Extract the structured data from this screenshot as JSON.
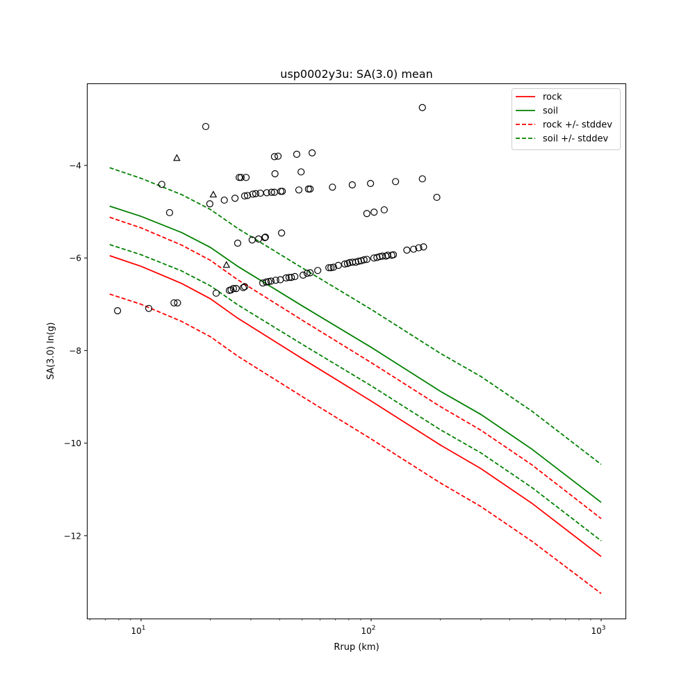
{
  "chart_data": {
    "type": "scatter",
    "title": "usp0002y3u: SA(3.0) mean",
    "xlabel": "Rrup (km)",
    "ylabel": "SA(3.0) ln(g)",
    "xscale": "log",
    "xlim": [
      5.8,
      1276
    ],
    "ylim": [
      -13.79,
      -2.23
    ],
    "grid": false,
    "legend_position": "top-right",
    "x_ticks": [
      {
        "value": 10,
        "base": "10",
        "exp": "1"
      },
      {
        "value": 100,
        "base": "10",
        "exp": "2"
      },
      {
        "value": 1000,
        "base": "10",
        "exp": "3"
      }
    ],
    "y_ticks": [
      {
        "value": -4,
        "label": "−4"
      },
      {
        "value": -6,
        "label": "−6"
      },
      {
        "value": -8,
        "label": "−8"
      },
      {
        "value": -10,
        "label": "−10"
      },
      {
        "value": -12,
        "label": "−12"
      }
    ],
    "curve_x": [
      7.3,
      10,
      15,
      20,
      26.3,
      50,
      100,
      200,
      300,
      500,
      1000
    ],
    "series": [
      {
        "name": "rock",
        "color": "#ff0000",
        "dash": false,
        "values": [
          -5.95,
          -6.18,
          -6.55,
          -6.88,
          -7.3,
          -8.17,
          -9.09,
          -10.04,
          -10.55,
          -11.3,
          -12.45
        ]
      },
      {
        "name": "soil",
        "color": "#008000",
        "dash": false,
        "values": [
          -4.88,
          -5.1,
          -5.45,
          -5.77,
          -6.18,
          -7.03,
          -7.93,
          -8.88,
          -9.38,
          -10.13,
          -11.28
        ]
      },
      {
        "name": "rock +/- stddev",
        "color": "#ff0000",
        "dash": true,
        "values": [
          -5.12,
          -5.35,
          -5.72,
          -6.05,
          -6.47,
          -7.34,
          -8.26,
          -9.21,
          -9.72,
          -10.47,
          -11.63
        ]
      },
      {
        "name": "rock lower",
        "legend": false,
        "color": "#ff0000",
        "dash": true,
        "values": [
          -6.78,
          -7.0,
          -7.37,
          -7.7,
          -8.12,
          -8.99,
          -9.91,
          -10.86,
          -11.37,
          -12.12,
          -13.25
        ]
      },
      {
        "name": "soil +/- stddev",
        "color": "#008000",
        "dash": true,
        "values": [
          -4.05,
          -4.28,
          -4.63,
          -4.95,
          -5.36,
          -6.21,
          -7.11,
          -8.06,
          -8.56,
          -9.31,
          -10.46
        ]
      },
      {
        "name": "soil lower",
        "legend": false,
        "color": "#008000",
        "dash": true,
        "values": [
          -5.71,
          -5.93,
          -6.28,
          -6.6,
          -7.01,
          -7.86,
          -8.76,
          -9.71,
          -10.21,
          -10.96,
          -12.11
        ]
      }
    ],
    "circles": [
      [
        7.9,
        -7.14
      ],
      [
        10.8,
        -7.09
      ],
      [
        12.3,
        -4.41
      ],
      [
        13.3,
        -5.02
      ],
      [
        13.9,
        -6.97
      ],
      [
        14.4,
        -6.97
      ],
      [
        19.1,
        -3.16
      ],
      [
        19.9,
        -4.83
      ],
      [
        21.2,
        -6.76
      ],
      [
        23.0,
        -4.75
      ],
      [
        24.2,
        -6.7
      ],
      [
        24.6,
        -6.69
      ],
      [
        25.6,
        -4.71
      ],
      [
        25.2,
        -6.66
      ],
      [
        25.9,
        -6.66
      ],
      [
        26.3,
        -5.68
      ],
      [
        26.7,
        -4.26
      ],
      [
        27.2,
        -4.26
      ],
      [
        27.8,
        -6.64
      ],
      [
        28.2,
        -6.62
      ],
      [
        28.6,
        -4.26
      ],
      [
        28.2,
        -4.66
      ],
      [
        29.0,
        -4.65
      ],
      [
        30.4,
        -5.61
      ],
      [
        30.6,
        -4.62
      ],
      [
        31.5,
        -4.61
      ],
      [
        32.4,
        -5.59
      ],
      [
        33.0,
        -4.6
      ],
      [
        33.8,
        -6.54
      ],
      [
        34.5,
        -5.56
      ],
      [
        34.7,
        -5.55
      ],
      [
        35.0,
        -6.52
      ],
      [
        35.8,
        -6.51
      ],
      [
        36.7,
        -6.5
      ],
      [
        35.2,
        -4.59
      ],
      [
        36.9,
        -4.58
      ],
      [
        38.0,
        -4.58
      ],
      [
        38.2,
        -4.18
      ],
      [
        38.0,
        -3.81
      ],
      [
        39.4,
        -3.8
      ],
      [
        38.5,
        -6.48
      ],
      [
        40.3,
        -6.47
      ],
      [
        40.5,
        -4.56
      ],
      [
        41.1,
        -4.56
      ],
      [
        40.8,
        -5.46
      ],
      [
        42.7,
        -6.43
      ],
      [
        44.0,
        -6.42
      ],
      [
        45.0,
        -6.42
      ],
      [
        46.6,
        -6.4
      ],
      [
        47.5,
        -3.76
      ],
      [
        48.5,
        -4.53
      ],
      [
        49.6,
        -4.14
      ],
      [
        50.6,
        -6.37
      ],
      [
        52.7,
        -6.33
      ],
      [
        54.3,
        -6.32
      ],
      [
        53.4,
        -4.51
      ],
      [
        54.3,
        -4.51
      ],
      [
        55.4,
        -3.73
      ],
      [
        58.6,
        -6.27
      ],
      [
        65.5,
        -6.21
      ],
      [
        66.9,
        -6.21
      ],
      [
        68.6,
        -6.2
      ],
      [
        67.9,
        -4.47
      ],
      [
        72.0,
        -6.16
      ],
      [
        76.8,
        -6.13
      ],
      [
        78.9,
        -6.12
      ],
      [
        80.6,
        -6.1
      ],
      [
        82.8,
        -4.42
      ],
      [
        83.0,
        -6.09
      ],
      [
        85.7,
        -6.09
      ],
      [
        88.1,
        -6.07
      ],
      [
        90.5,
        -6.06
      ],
      [
        93.1,
        -6.04
      ],
      [
        95.8,
        -6.03
      ],
      [
        95.8,
        -5.04
      ],
      [
        99.4,
        -4.39
      ],
      [
        102.8,
        -6.0
      ],
      [
        106,
        -5.99
      ],
      [
        109,
        -5.97
      ],
      [
        112,
        -5.96
      ],
      [
        116,
        -5.96
      ],
      [
        118,
        -5.94
      ],
      [
        123,
        -5.94
      ],
      [
        125,
        -5.93
      ],
      [
        103,
        -5.01
      ],
      [
        114,
        -4.96
      ],
      [
        127.7,
        -4.35
      ],
      [
        143,
        -5.83
      ],
      [
        153,
        -5.81
      ],
      [
        161,
        -5.78
      ],
      [
        169,
        -5.76
      ],
      [
        167,
        -4.29
      ],
      [
        167,
        -2.75
      ],
      [
        193,
        -4.69
      ]
    ],
    "triangles": [
      [
        14.3,
        -3.84
      ],
      [
        20.6,
        -4.63
      ],
      [
        23.5,
        -6.15
      ]
    ]
  }
}
